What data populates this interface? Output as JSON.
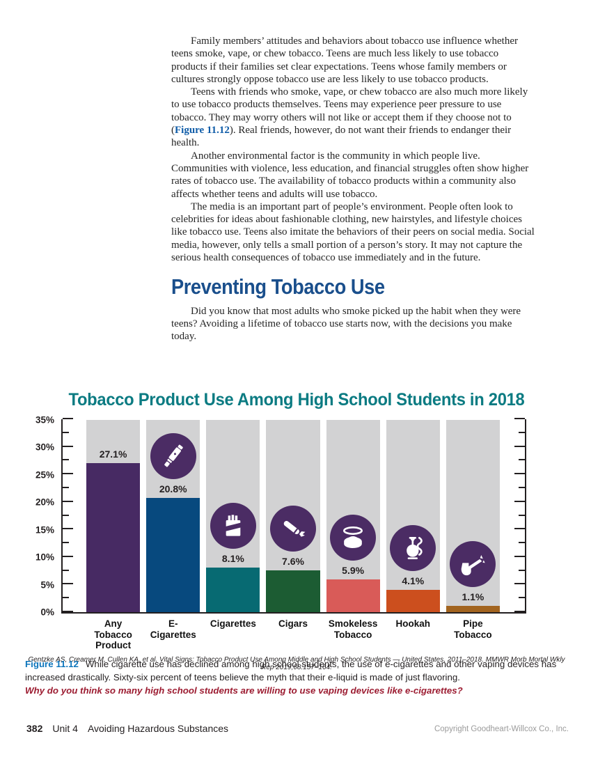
{
  "accents": {
    "heading_blue": "#1a4f8c",
    "title_teal": "#0b7b82",
    "figure_ref_blue": "#0f5ca8",
    "caption_label_blue": "#0e76bc",
    "question_red": "#9c1c31"
  },
  "body": {
    "p1": "Family members’ attitudes and behaviors about tobacco use influence whether teens smoke, vape, or chew tobacco. Teens are much less likely to use tobacco products if their families set clear expectations. Teens whose family members or cultures strongly oppose tobacco use are less likely to use tobacco products.",
    "p2_before": "Teens with friends who smoke, vape, or chew tobacco are also much more likely to use tobacco products themselves. Teens may experience peer pressure to use tobacco. They may worry others will not like or accept them if they choose not to (",
    "p2_figure_ref": "Figure 11.12",
    "p2_after": "). Real friends, however, do not want their friends to endanger their health.",
    "p3": "Another environmental factor is the community in which people live. Communities with violence, less education, and financial struggles often show higher rates of tobacco use. The availability of tobacco products within a community also affects whether teens and adults will use tobacco.",
    "p4": "The media is an important part of people’s environment. People often look to celebrities for ideas about fashionable clothing, new hairstyles, and lifestyle choices like tobacco use. Teens also imitate the behaviors of their peers on social media. Social media, however, only tells a small portion of a person’s story. It may not capture the serious health consequences of tobacco use immediately and in the future.",
    "heading": "Preventing Tobacco Use",
    "p5": "Did you know that most adults who smoke picked up the habit when they were teens? Avoiding a lifetime of tobacco use starts now, with the decisions you make today."
  },
  "chart_data": {
    "type": "bar",
    "title": "Tobacco Product Use Among High School Students in 2018",
    "categories": [
      "Any Tobacco\nProduct",
      "E-Cigarettes",
      "Cigarettes",
      "Cigars",
      "Smokeless\nTobacco",
      "Hookah",
      "Pipe Tobacco"
    ],
    "values": [
      27.1,
      20.8,
      8.1,
      7.6,
      5.9,
      4.1,
      1.1
    ],
    "value_labels": [
      "27.1%",
      "20.8%",
      "8.1%",
      "7.6%",
      "5.9%",
      "4.1%",
      "1.1%"
    ],
    "bar_colors": [
      "#472a63",
      "#07497e",
      "#076a72",
      "#1c5c33",
      "#d95b58",
      "#cc4f1e",
      "#a2641f"
    ],
    "icons": [
      null,
      "vape-pen-icon",
      "cigarette-pack-icon",
      "cigar-icon",
      "smokeless-tin-icon",
      "hookah-icon",
      "pipe-icon"
    ],
    "column_bg": "#d2d2d3",
    "icon_circle_color": "#4b2c64",
    "ylim": [
      0,
      35
    ],
    "y_major_step": 5,
    "y_minor_step": 2.5,
    "y_tick_labels": [
      "0%",
      "5%",
      "10%",
      "15%",
      "20%",
      "25%",
      "30%",
      "35%"
    ],
    "xlabel": "",
    "ylabel": "",
    "grid": false,
    "legend": "none",
    "source": "Gentzke AS, Creamer M, Cullen KA, et al. Vital Signs: Tobacco Product Use Among Middle and High School Students — United States, 2011–2018. MMWR Morb Mortal Wkly Rep 2019;68:157–164."
  },
  "figure_caption": {
    "label": "Figure 11.12",
    "text": "While cigarette use has declined among high school students, the use of e-cigarettes and other vaping devices has increased drastically. Sixty-six percent of teens believe the myth that their e-liquid is made of just flavoring.",
    "question": "Why do you think so many high school students are willing to use vaping devices like e-cigarettes?"
  },
  "footer": {
    "page_number": "382",
    "unit": "Unit 4",
    "section": "Avoiding Hazardous Substances",
    "copyright": "Copyright Goodheart-Willcox Co., Inc."
  }
}
